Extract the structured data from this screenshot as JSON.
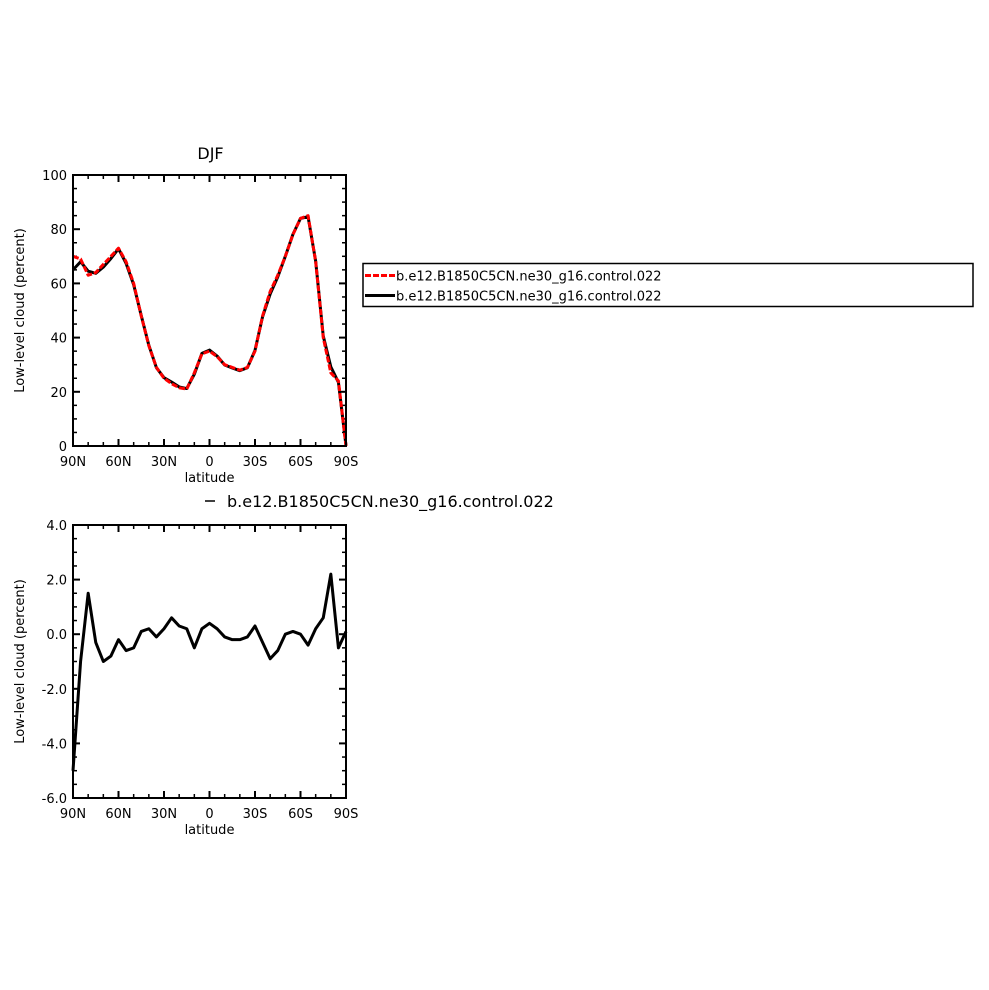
{
  "chart_data": [
    {
      "type": "line",
      "title": "DJF",
      "x_label": "latitude",
      "y_label": "Low-level cloud (percent)",
      "x": [
        90,
        85,
        80,
        75,
        70,
        65,
        60,
        55,
        50,
        45,
        40,
        35,
        30,
        25,
        20,
        15,
        10,
        5,
        0,
        -5,
        -10,
        -15,
        -20,
        -25,
        -30,
        -35,
        -40,
        -45,
        -50,
        -55,
        -60,
        -65,
        -70,
        -75,
        -80,
        -85,
        -90
      ],
      "xlim": [
        90,
        -90
      ],
      "xticks": [
        {
          "value": 90,
          "label": "90N"
        },
        {
          "value": 60,
          "label": "60N"
        },
        {
          "value": 30,
          "label": "30N"
        },
        0,
        {
          "value": -30,
          "label": "30S"
        },
        {
          "value": -60,
          "label": "60S"
        },
        {
          "value": -90,
          "label": "90S"
        }
      ],
      "ylim": [
        0,
        100
      ],
      "yticks": [
        0,
        20,
        40,
        60,
        80,
        100
      ],
      "legend": "right",
      "series": [
        {
          "name": "b.e12.B1850C5CN.ne30_g16.control.022",
          "color": "#ff0000",
          "dashed": true,
          "values": [
            70,
            69,
            63,
            64,
            67,
            70,
            73,
            68,
            60,
            48,
            37,
            29,
            25,
            23,
            21.5,
            21,
            27,
            34,
            35,
            33,
            30,
            29,
            28,
            29,
            35,
            48,
            57,
            63,
            70,
            78,
            84,
            85,
            68,
            40,
            27,
            24,
            0
          ]
        },
        {
          "name": "b.e12.B1850C5CN.ne30_g16.control.022",
          "color": "#000000",
          "dashed": false,
          "values": [
            65,
            68,
            64.5,
            63.7,
            66,
            69.2,
            72.8,
            67.4,
            59.5,
            48.1,
            37.2,
            28.9,
            25.2,
            23.6,
            21.8,
            21.2,
            26.5,
            34.2,
            35.4,
            33.2,
            29.9,
            28.8,
            27.8,
            28.9,
            35.3,
            47.7,
            56.1,
            62.4,
            70,
            78.1,
            84,
            84.6,
            68.2,
            40.6,
            29.2,
            23.5,
            0.1
          ]
        }
      ]
    },
    {
      "type": "line",
      "x_label": "latitude",
      "y_label": "Low-level cloud (percent)",
      "x": [
        90,
        85,
        80,
        75,
        70,
        65,
        60,
        55,
        50,
        45,
        40,
        35,
        30,
        25,
        20,
        15,
        10,
        5,
        0,
        -5,
        -10,
        -15,
        -20,
        -25,
        -30,
        -35,
        -40,
        -45,
        -50,
        -55,
        -60,
        -65,
        -70,
        -75,
        -80,
        -85,
        -90
      ],
      "xlim": [
        90,
        -90
      ],
      "xticks": [
        {
          "value": 90,
          "label": "90N"
        },
        {
          "value": 60,
          "label": "60N"
        },
        {
          "value": 30,
          "label": "30N"
        },
        0,
        {
          "value": -30,
          "label": "30S"
        },
        {
          "value": -60,
          "label": "60S"
        },
        {
          "value": -90,
          "label": "90S"
        }
      ],
      "ylim": [
        -6,
        4
      ],
      "yticks": [
        {
          "value": -6,
          "label": "-6.0"
        },
        {
          "value": -4,
          "label": "-4.0"
        },
        {
          "value": -2,
          "label": "-2.0"
        },
        {
          "value": 0,
          "label": "0.0"
        },
        {
          "value": 2,
          "label": "2.0"
        },
        {
          "value": 4,
          "label": "4.0"
        }
      ],
      "legend": "top",
      "series": [
        {
          "name": "b.e12.B1850C5CN.ne30_g16.control.022",
          "color": "#000000",
          "dashed": false,
          "values": [
            -5,
            -1,
            1.5,
            -0.3,
            -1,
            -0.8,
            -0.2,
            -0.6,
            -0.5,
            0.1,
            0.2,
            -0.1,
            0.2,
            0.6,
            0.3,
            0.2,
            -0.5,
            0.2,
            0.4,
            0.2,
            -0.1,
            -0.2,
            -0.2,
            -0.1,
            0.3,
            -0.3,
            -0.9,
            -0.6,
            0,
            0.1,
            0,
            -0.4,
            0.2,
            0.6,
            2.2,
            -0.5,
            0.1
          ]
        }
      ]
    }
  ]
}
